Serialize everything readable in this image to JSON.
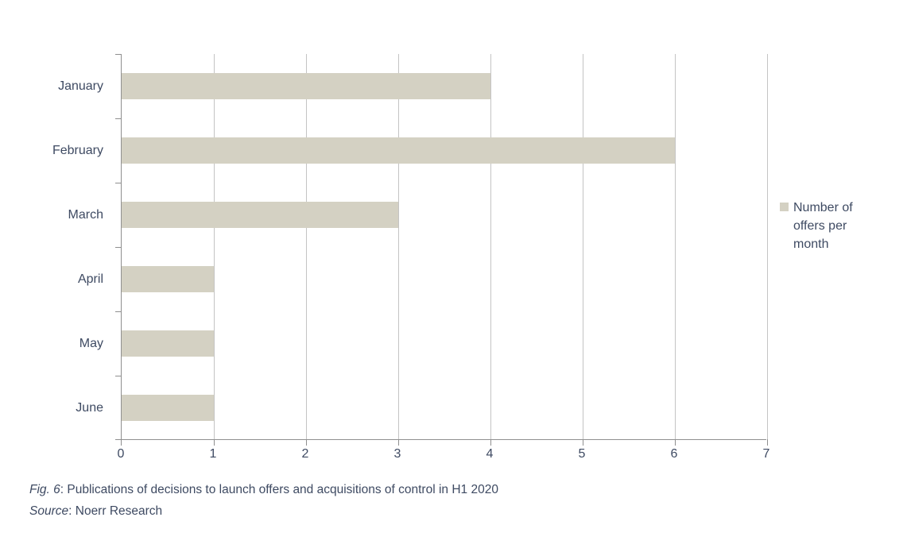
{
  "colors": {
    "background": "#ffffff",
    "bar_fill": "#d4d1c3",
    "text": "#3e4a62",
    "axis": "#8f8f8f",
    "gridline": "#c4c4c4"
  },
  "chart_data": {
    "type": "bar",
    "orientation": "horizontal",
    "title": "",
    "categories": [
      "January",
      "February",
      "March",
      "April",
      "May",
      "June"
    ],
    "series": [
      {
        "name": "Number of offers per month",
        "values": [
          4,
          6,
          3,
          1,
          1,
          1
        ]
      }
    ],
    "xlim": [
      0,
      7
    ],
    "xticks": [
      0,
      1,
      2,
      3,
      4,
      5,
      6,
      7
    ],
    "grid": "vertical-gridlines-on",
    "legend_position": "right"
  },
  "legend": {
    "label": "Number of offers per month"
  },
  "caption": {
    "fig_label": "Fig. 6",
    "fig_separator": ": ",
    "fig_text": "Publications of decisions to launch offers and acquisitions of control in H1 2020",
    "source_label": "Source",
    "source_separator": ": ",
    "source_text": "Noerr Research"
  }
}
